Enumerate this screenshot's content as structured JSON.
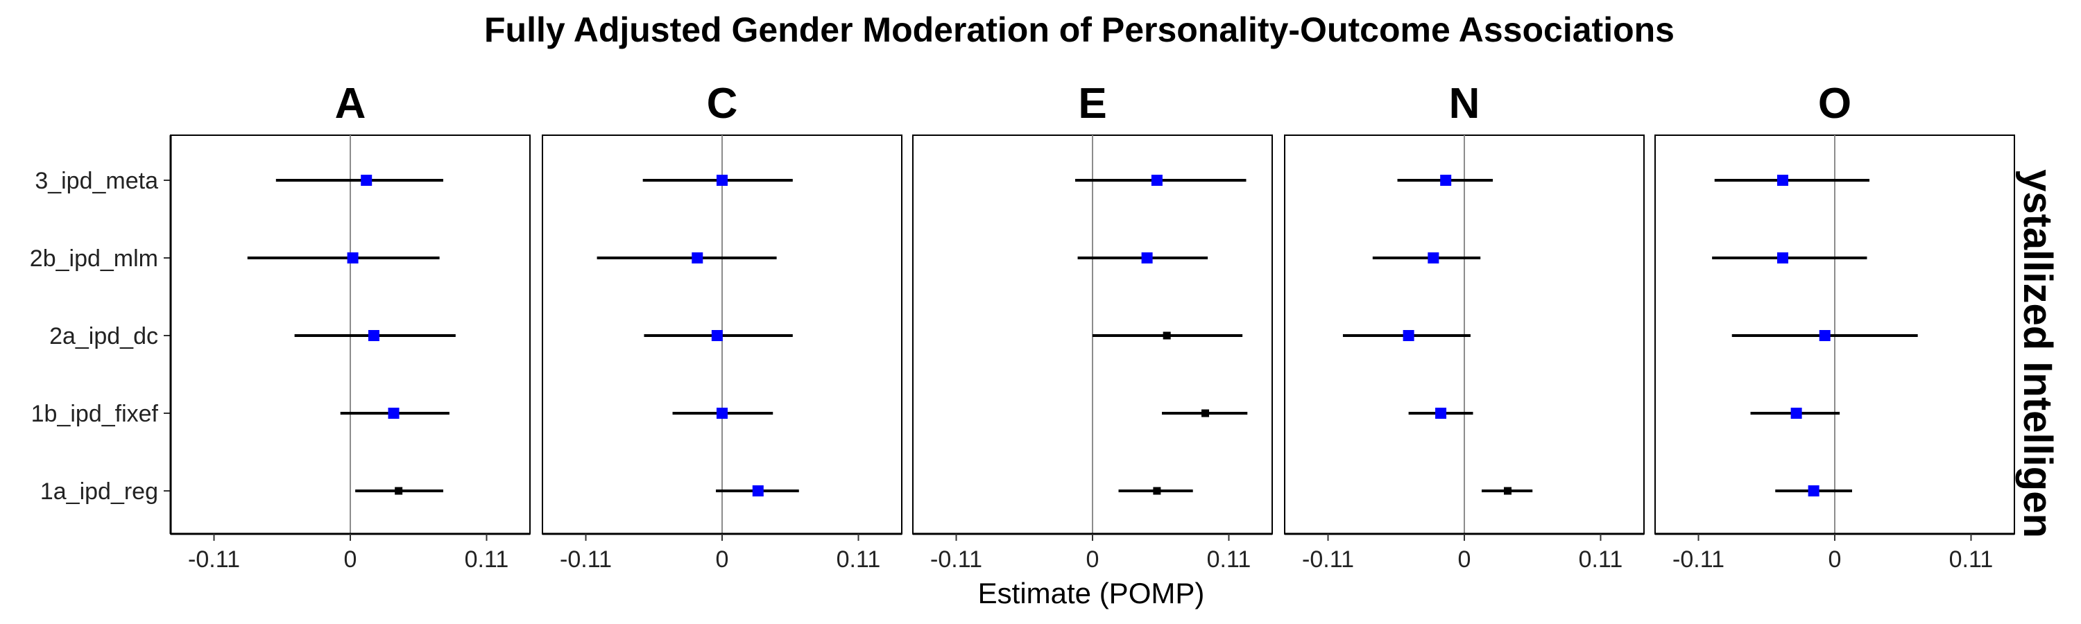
{
  "chart_data": {
    "type": "forest",
    "title": "Fully Adjusted Gender Moderation of Personality-Outcome Associations",
    "xlabel": "Estimate (POMP)",
    "strip_label": "ystallized Intelligen",
    "xlim": [
      -0.145,
      0.145
    ],
    "x_ticks": [
      -0.11,
      0,
      0.11
    ],
    "x_tick_labels": [
      "-0.11",
      "0",
      "0.11"
    ],
    "reference_line": 0,
    "grid": false,
    "colors": {
      "significant": "#0000ff",
      "nonsignificant": "#000000"
    },
    "methods": [
      "3_ipd_meta",
      "2b_ipd_mlm",
      "2a_ipd_dc",
      "1b_ipd_fixef",
      "1a_ipd_reg"
    ],
    "panels": [
      {
        "label": "A",
        "points": [
          {
            "est": 0.013,
            "lo": -0.06,
            "hi": 0.075,
            "sig": true
          },
          {
            "est": 0.002,
            "lo": -0.083,
            "hi": 0.072,
            "sig": true
          },
          {
            "est": 0.019,
            "lo": -0.045,
            "hi": 0.085,
            "sig": true
          },
          {
            "est": 0.035,
            "lo": -0.008,
            "hi": 0.08,
            "sig": true
          },
          {
            "est": 0.039,
            "lo": 0.004,
            "hi": 0.075,
            "sig": false
          }
        ]
      },
      {
        "label": "C",
        "points": [
          {
            "est": 0.0,
            "lo": -0.064,
            "hi": 0.057,
            "sig": true
          },
          {
            "est": -0.02,
            "lo": -0.101,
            "hi": 0.044,
            "sig": true
          },
          {
            "est": -0.004,
            "lo": -0.063,
            "hi": 0.057,
            "sig": true
          },
          {
            "est": 0.0,
            "lo": -0.04,
            "hi": 0.041,
            "sig": true
          },
          {
            "est": 0.029,
            "lo": -0.005,
            "hi": 0.062,
            "sig": true
          }
        ]
      },
      {
        "label": "E",
        "points": [
          {
            "est": 0.052,
            "lo": -0.014,
            "hi": 0.124,
            "sig": true
          },
          {
            "est": 0.044,
            "lo": -0.012,
            "hi": 0.093,
            "sig": true
          },
          {
            "est": 0.06,
            "lo": 0.0,
            "hi": 0.121,
            "sig": false
          },
          {
            "est": 0.091,
            "lo": 0.056,
            "hi": 0.125,
            "sig": false
          },
          {
            "est": 0.052,
            "lo": 0.021,
            "hi": 0.081,
            "sig": false
          }
        ]
      },
      {
        "label": "N",
        "points": [
          {
            "est": -0.015,
            "lo": -0.054,
            "hi": 0.023,
            "sig": true
          },
          {
            "est": -0.025,
            "lo": -0.074,
            "hi": 0.013,
            "sig": true
          },
          {
            "est": -0.045,
            "lo": -0.098,
            "hi": 0.005,
            "sig": true
          },
          {
            "est": -0.019,
            "lo": -0.045,
            "hi": 0.007,
            "sig": true
          },
          {
            "est": 0.035,
            "lo": 0.014,
            "hi": 0.055,
            "sig": false
          }
        ]
      },
      {
        "label": "O",
        "points": [
          {
            "est": -0.042,
            "lo": -0.097,
            "hi": 0.028,
            "sig": true
          },
          {
            "est": -0.042,
            "lo": -0.099,
            "hi": 0.026,
            "sig": true
          },
          {
            "est": -0.008,
            "lo": -0.083,
            "hi": 0.067,
            "sig": true
          },
          {
            "est": -0.031,
            "lo": -0.068,
            "hi": 0.004,
            "sig": true
          },
          {
            "est": -0.017,
            "lo": -0.048,
            "hi": 0.014,
            "sig": true
          }
        ]
      }
    ]
  }
}
